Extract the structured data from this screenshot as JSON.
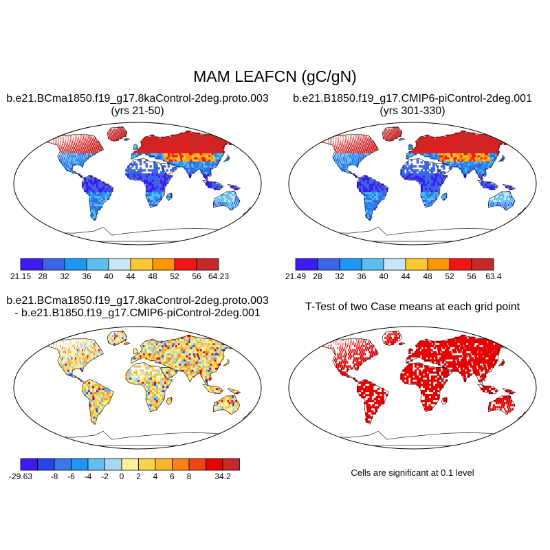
{
  "title": "MAM LEAFCN (gC/gN)",
  "panels": [
    {
      "title_line1": "b.e21.BCma1850.f19_g17.8kaControl-2deg.proto.003",
      "title_line2": "(yrs 21-50)"
    },
    {
      "title_line1": "b.e21.B1850.f19_g17.CMIP6-piControl-2deg.001",
      "title_line2": "(yrs 301-330)"
    },
    {
      "title_line1": "b.e21.BCma1850.f19_g17.8kaControl-2deg.proto.003",
      "title_line2": "- b.e21.B1850.f19_g17.CMIP6-piControl-2deg.001"
    },
    {
      "title_line1": "T-Test of two Case means at each grid point",
      "title_line2": ""
    }
  ],
  "significance_note": "Cells are significant at 0.1 level",
  "colorbars": [
    {
      "labels": [
        "21.15",
        "28",
        "32",
        "36",
        "40",
        "44",
        "48",
        "52",
        "56",
        "64.23"
      ],
      "colors": [
        "#3c1cf2",
        "#3c64e6",
        "#1e96f5",
        "#5abef0",
        "#c8e6f5",
        "#fac832",
        "#fa9600",
        "#f51414",
        "#c82828"
      ]
    },
    {
      "labels": [
        "21.49",
        "28",
        "32",
        "36",
        "40",
        "44",
        "48",
        "52",
        "56",
        "63.4"
      ],
      "colors": [
        "#3c1cf2",
        "#3c64e6",
        "#1e96f5",
        "#5abef0",
        "#c8e6f5",
        "#fac832",
        "#fa9600",
        "#f51414",
        "#c82828"
      ]
    },
    {
      "labels": [
        "-29.63",
        "",
        "-8",
        "-6",
        "-4",
        "-2",
        "0",
        "2",
        "4",
        "6",
        "8",
        "",
        "34.2"
      ],
      "colors": [
        "#3c1cf2",
        "#2846e6",
        "#3c78e6",
        "#1e96f5",
        "#64bef0",
        "#a8d8f0",
        "#fff096",
        "#fad250",
        "#fab428",
        "#fa8214",
        "#f04614",
        "#e60000",
        "#c82828"
      ]
    }
  ],
  "map_style": {
    "panel1": "absolute",
    "panel2": "absolute",
    "panel3": "difference",
    "panel4": "significance",
    "significance_color": "#e60000"
  }
}
